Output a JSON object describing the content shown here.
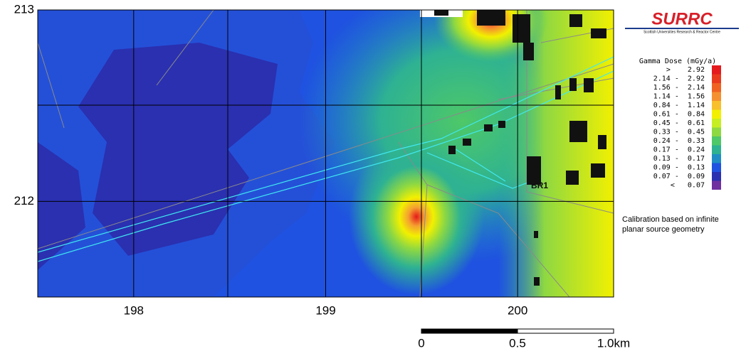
{
  "map": {
    "xlim": [
      197.5,
      200.5
    ],
    "ylim": [
      211.5,
      213
    ],
    "xticks": [
      198,
      199,
      200
    ],
    "yticks": [
      212,
      213
    ],
    "site_label": "BR1",
    "logo": {
      "mark": "SURRC",
      "subtitle": "Scottish Universities Research & Reactor Centre"
    },
    "legend": {
      "title": "Gamma Dose (mGy/a)",
      "rows": [
        {
          "label": ">    2.92",
          "color": "#e41a1c"
        },
        {
          "label": "2.14 -  2.92",
          "color": "#ea3a1e"
        },
        {
          "label": "1.56 -  2.14",
          "color": "#f06222"
        },
        {
          "label": "1.14 -  1.56",
          "color": "#f59030"
        },
        {
          "label": "0.84 -  1.14",
          "color": "#f7c02c"
        },
        {
          "label": "0.61 -  0.84",
          "color": "#f2f000"
        },
        {
          "label": "0.45 -  0.61",
          "color": "#c6ee22"
        },
        {
          "label": "0.33 -  0.45",
          "color": "#8ed842"
        },
        {
          "label": "0.24 -  0.33",
          "color": "#4ec868"
        },
        {
          "label": "0.17 -  0.24",
          "color": "#2eb292"
        },
        {
          "label": "0.13 -  0.17",
          "color": "#208ec4"
        },
        {
          "label": "0.09 -  0.13",
          "color": "#1f52e0"
        },
        {
          "label": "0.07 -  0.09",
          "color": "#2a30b0"
        },
        {
          "label": "<   0.07",
          "color": "#7030a0"
        }
      ]
    },
    "note": [
      "Calibration based on infinite",
      "planar source geometry"
    ],
    "scale_bar": [
      "0",
      "0.5",
      "1.0km"
    ]
  }
}
